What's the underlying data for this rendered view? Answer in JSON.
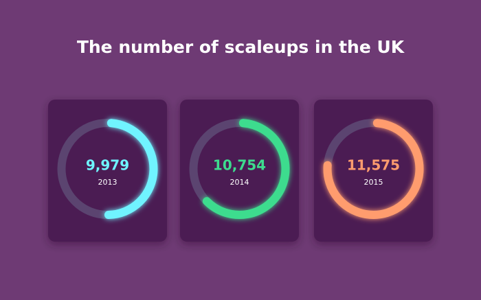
{
  "chart_data": {
    "type": "gauge",
    "title": "The number of scaleups in the UK",
    "categories": [
      "2013",
      "2014",
      "2015"
    ],
    "values": [
      9979,
      10754,
      11575
    ],
    "value_labels": [
      "9,979",
      "10,754",
      "11,575"
    ],
    "colors": [
      "#6ff3ff",
      "#3ddc8e",
      "#ff9c6e"
    ],
    "ylim": [
      7000,
      13000
    ]
  }
}
